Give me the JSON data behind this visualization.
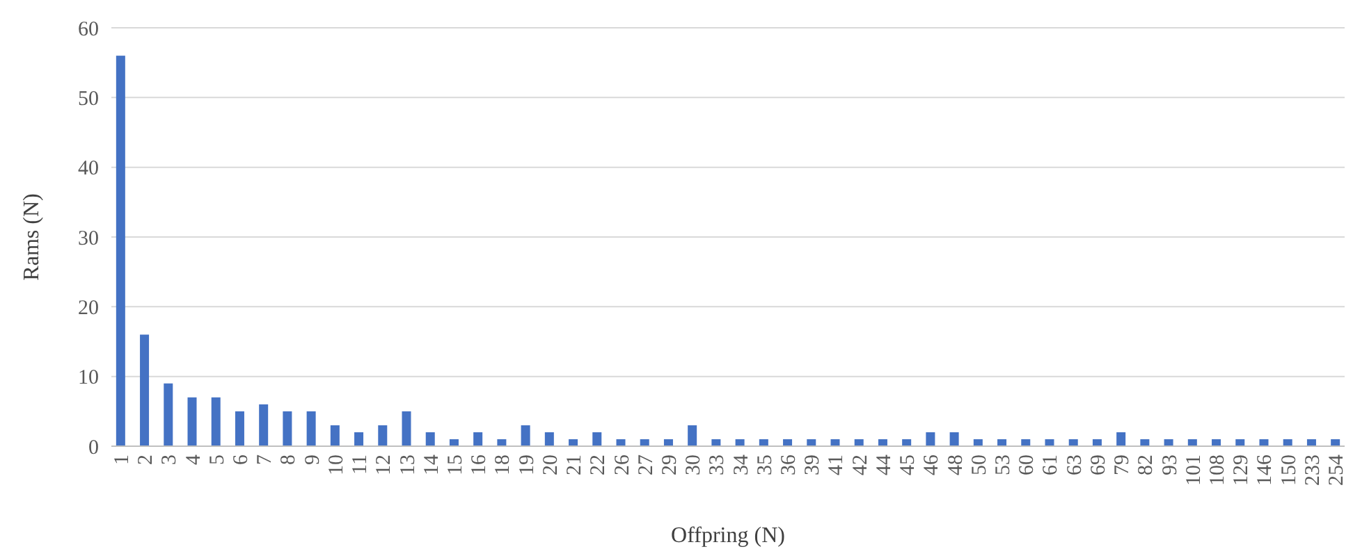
{
  "chart_data": {
    "type": "bar",
    "xlabel": "Offpring (N)",
    "ylabel": "Rams (N)",
    "categories": [
      "1",
      "2",
      "3",
      "4",
      "5",
      "6",
      "7",
      "8",
      "9",
      "10",
      "11",
      "12",
      "13",
      "14",
      "15",
      "16",
      "18",
      "19",
      "20",
      "21",
      "22",
      "26",
      "27",
      "29",
      "30",
      "33",
      "34",
      "35",
      "36",
      "39",
      "41",
      "42",
      "44",
      "45",
      "46",
      "48",
      "50",
      "53",
      "60",
      "61",
      "63",
      "69",
      "79",
      "82",
      "93",
      "101",
      "108",
      "129",
      "146",
      "150",
      "233",
      "254"
    ],
    "values": [
      56,
      16,
      9,
      7,
      7,
      5,
      6,
      5,
      5,
      3,
      2,
      3,
      5,
      2,
      1,
      2,
      1,
      3,
      2,
      1,
      2,
      1,
      1,
      1,
      3,
      1,
      1,
      1,
      1,
      1,
      1,
      1,
      1,
      1,
      2,
      2,
      1,
      1,
      1,
      1,
      1,
      1,
      2,
      1,
      1,
      1,
      1,
      1,
      1,
      1,
      1,
      1
    ],
    "color": "#4472c4",
    "ylim": [
      0,
      60
    ],
    "yticks": [
      0,
      10,
      20,
      30,
      40,
      50,
      60
    ],
    "grid": "y"
  }
}
